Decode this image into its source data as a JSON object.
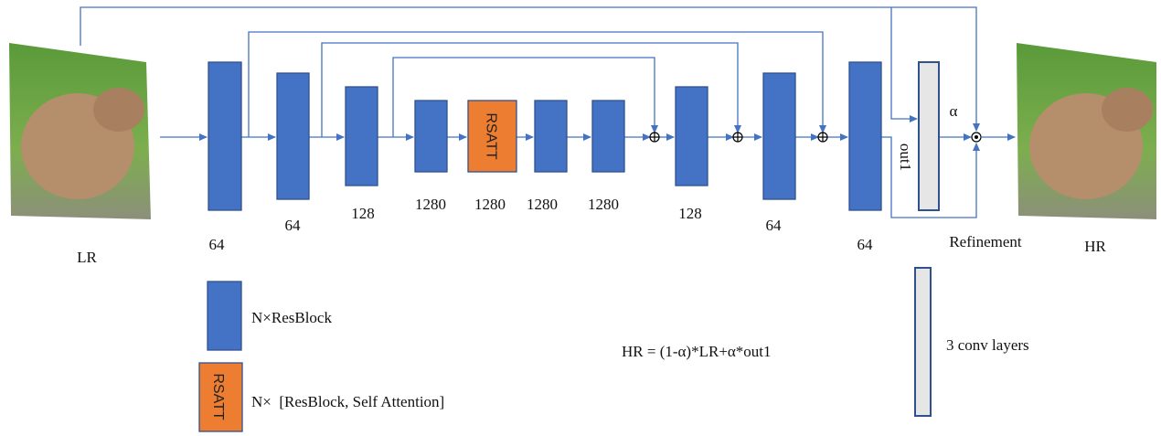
{
  "input_label": "LR",
  "output_label": "HR",
  "blocks": [
    {
      "channels": 64
    },
    {
      "channels": 64
    },
    {
      "channels": 128
    },
    {
      "channels": 1280
    },
    {
      "channels": 1280,
      "label": "RSATT"
    },
    {
      "channels": 1280
    },
    {
      "channels": 1280
    },
    {
      "channels": 128
    },
    {
      "channels": 64
    },
    {
      "channels": 64
    }
  ],
  "refinement": {
    "label": "Refinement",
    "output": "out1",
    "alpha": "α"
  },
  "legend": [
    {
      "label": "N×ResBlock"
    },
    {
      "symbol": "RSATT",
      "label": "N×  [ResBlock, Self Attention]"
    },
    {
      "label": "3 conv layers"
    }
  ],
  "formula": "HR = (1-α)*LR+α*out1"
}
